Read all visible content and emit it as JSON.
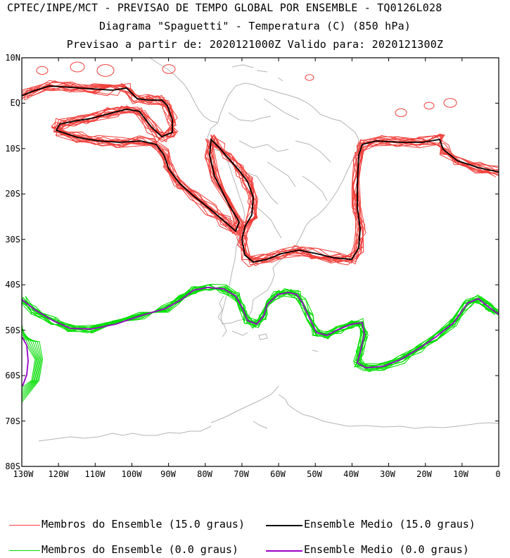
{
  "header": {
    "line1": "CPTEC/INPE/MCT - PREVISAO DE TEMPO GLOBAL POR ENSEMBLE - TQ0126L028",
    "line2": "Diagrama \"Spaguetti\" - Temperatura (C) (850 hPa)",
    "line3": "Previsao a partir de: 2020121000Z  Valido para: 2020121300Z"
  },
  "axes": {
    "lat_labels": [
      "10N",
      "EQ",
      "10S",
      "20S",
      "30S",
      "40S",
      "50S",
      "60S",
      "70S",
      "80S"
    ],
    "lon_labels": [
      "130W",
      "120W",
      "110W",
      "100W",
      "90W",
      "80W",
      "70W",
      "60W",
      "50W",
      "40W",
      "30W",
      "20W",
      "10W",
      "0"
    ]
  },
  "colors": {
    "members_15": "#f0403c",
    "mean_15": "#000000",
    "members_0": "#00dd00",
    "mean_0": "#9a00c8",
    "coast": "#b4b4b4"
  },
  "legend": {
    "members_15": "Membros do Ensemble (15.0 graus)",
    "mean_15": "Ensemble Medio (15.0 graus)",
    "members_0": "Membros do Ensemble (0.0 graus)",
    "mean_0": "Ensemble Medio (0.0 graus)"
  }
}
